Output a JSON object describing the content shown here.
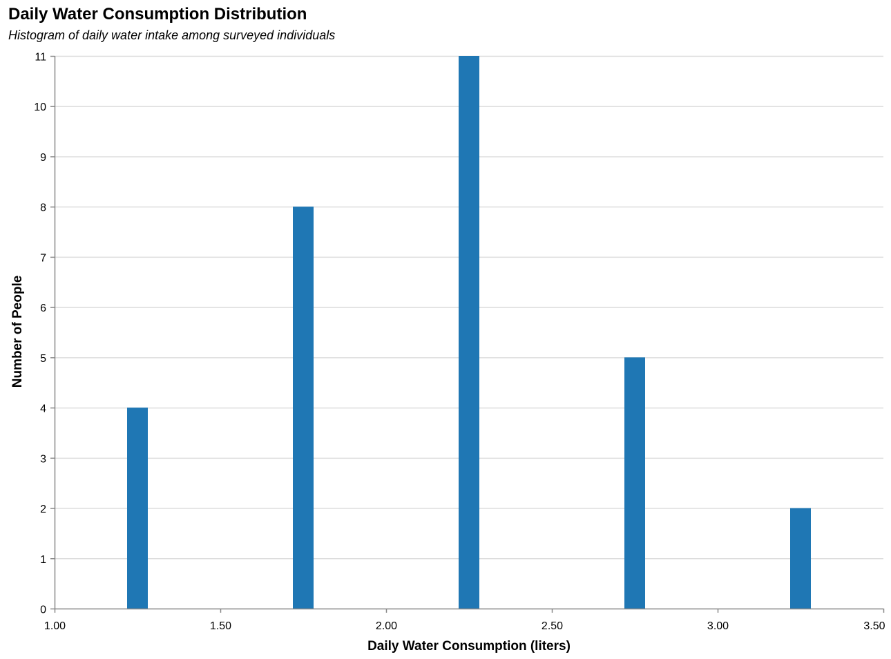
{
  "chart_data": {
    "type": "bar",
    "title": "Daily Water Consumption Distribution",
    "subtitle": "Histogram of daily water intake among surveyed individuals",
    "xlabel": "Daily Water Consumption (liters)",
    "ylabel": "Number of People",
    "xlim": [
      1.0,
      3.5
    ],
    "ylim": [
      0,
      11
    ],
    "x_ticks": [
      "1.00",
      "1.50",
      "2.00",
      "2.50",
      "3.00",
      "3.50"
    ],
    "y_ticks": [
      "0",
      "1",
      "2",
      "3",
      "4",
      "5",
      "6",
      "7",
      "8",
      "9",
      "10",
      "11"
    ],
    "grid": true,
    "series": [
      {
        "x": [
          1.25,
          1.75,
          2.25,
          2.75,
          3.25
        ],
        "values": [
          4,
          8,
          11,
          5,
          2
        ]
      }
    ],
    "bar_color": "#1f77b4",
    "grid_color": "#dddddd",
    "axis_color": "#888888"
  }
}
